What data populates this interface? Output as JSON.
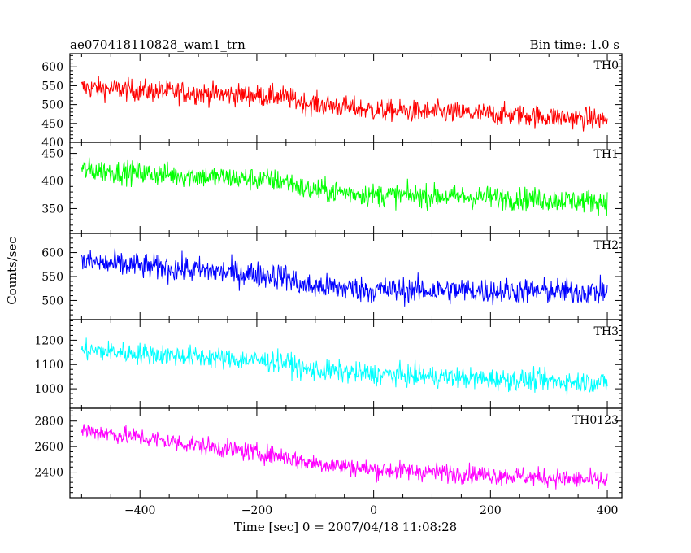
{
  "header": {
    "title": "ae070418110828_wam1_trn",
    "bin_time": "Bin time: 1.0 s"
  },
  "chart_data": {
    "type": "line",
    "title": "ae070418110828_wam1_trn",
    "subtitle": "Bin time: 1.0 s",
    "xlabel": "Time [sec] 0 = 2007/04/18 11:08:28",
    "ylabel": "Counts/sec",
    "xlim": [
      -520,
      425
    ],
    "xticks": [
      -400,
      -200,
      0,
      200,
      400
    ],
    "xtick_labels": [
      "−400",
      "−200",
      "0",
      "200",
      "400"
    ],
    "bin_time_s": 1.0,
    "x_start": -500,
    "x_end": 400,
    "panels": [
      {
        "name": "TH0",
        "color": "#ff0000",
        "ylim": [
          400,
          635
        ],
        "yticks": [
          400,
          450,
          500,
          550,
          600
        ],
        "trend": [
          [
            -500,
            545
          ],
          [
            -150,
            520
          ],
          [
            -120,
            505
          ],
          [
            0,
            485
          ],
          [
            200,
            475
          ],
          [
            400,
            460
          ]
        ],
        "noise": 28
      },
      {
        "name": "TH1",
        "color": "#00ff00",
        "ylim": [
          305,
          470
        ],
        "yticks": [
          350,
          400,
          450
        ],
        "trend": [
          [
            -500,
            420
          ],
          [
            -150,
            400
          ],
          [
            -120,
            385
          ],
          [
            0,
            375
          ],
          [
            200,
            370
          ],
          [
            400,
            362
          ]
        ],
        "noise": 20
      },
      {
        "name": "TH2",
        "color": "#0000ff",
        "ylim": [
          460,
          640
        ],
        "yticks": [
          500,
          550,
          600
        ],
        "trend": [
          [
            -500,
            580
          ],
          [
            -150,
            550
          ],
          [
            -120,
            530
          ],
          [
            0,
            522
          ],
          [
            200,
            520
          ],
          [
            400,
            518
          ]
        ],
        "noise": 26
      },
      {
        "name": "TH3",
        "color": "#00ffff",
        "ylim": [
          920,
          1285
        ],
        "yticks": [
          1000,
          1100,
          1200
        ],
        "trend": [
          [
            -500,
            1160
          ],
          [
            -150,
            1110
          ],
          [
            -120,
            1080
          ],
          [
            0,
            1060
          ],
          [
            200,
            1040
          ],
          [
            400,
            1025
          ]
        ],
        "noise": 42
      },
      {
        "name": "TH0123",
        "color": "#ff00ff",
        "ylim": [
          2200,
          2900
        ],
        "yticks": [
          2400,
          2600,
          2800
        ],
        "trend": [
          [
            -500,
            2730
          ],
          [
            -150,
            2520
          ],
          [
            -120,
            2480
          ],
          [
            0,
            2420
          ],
          [
            200,
            2380
          ],
          [
            400,
            2330
          ]
        ],
        "noise": 70
      }
    ]
  }
}
